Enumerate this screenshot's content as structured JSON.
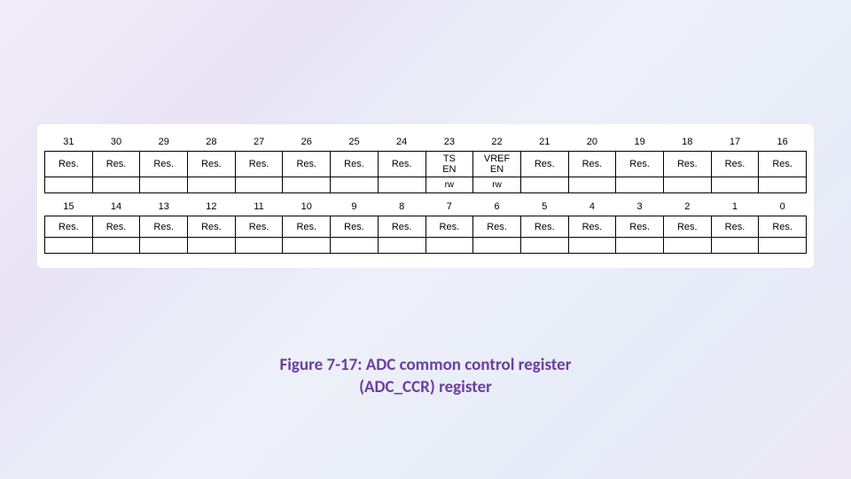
{
  "register": {
    "upper": {
      "bits": [
        "31",
        "30",
        "29",
        "28",
        "27",
        "26",
        "25",
        "24",
        "23",
        "22",
        "21",
        "20",
        "19",
        "18",
        "17",
        "16"
      ],
      "fields": [
        "Res.",
        "Res.",
        "Res.",
        "Res.",
        "Res.",
        "Res.",
        "Res.",
        "Res.",
        "TS\nEN",
        "VREF\nEN",
        "Res.",
        "Res.",
        "Res.",
        "Res.",
        "Res.",
        "Res."
      ],
      "access": [
        "",
        "",
        "",
        "",
        "",
        "",
        "",
        "",
        "rw",
        "rw",
        "",
        "",
        "",
        "",
        "",
        ""
      ]
    },
    "lower": {
      "bits": [
        "15",
        "14",
        "13",
        "12",
        "11",
        "10",
        "9",
        "8",
        "7",
        "6",
        "5",
        "4",
        "3",
        "2",
        "1",
        "0"
      ],
      "fields": [
        "Res.",
        "Res.",
        "Res.",
        "Res.",
        "Res.",
        "Res.",
        "Res.",
        "Res.",
        "Res.",
        "Res.",
        "Res.",
        "Res.",
        "Res.",
        "Res.",
        "Res.",
        "Res."
      ],
      "access": [
        "",
        "",
        "",
        "",
        "",
        "",
        "",
        "",
        "",
        "",
        "",
        "",
        "",
        "",
        "",
        ""
      ]
    }
  },
  "caption": {
    "line1": "Figure 7-17: ADC common control register",
    "line2": "(ADC_CCR) register"
  },
  "colors": {
    "caption": "#6b3fa0",
    "panel_bg": "#ffffff",
    "border": "#000000"
  }
}
